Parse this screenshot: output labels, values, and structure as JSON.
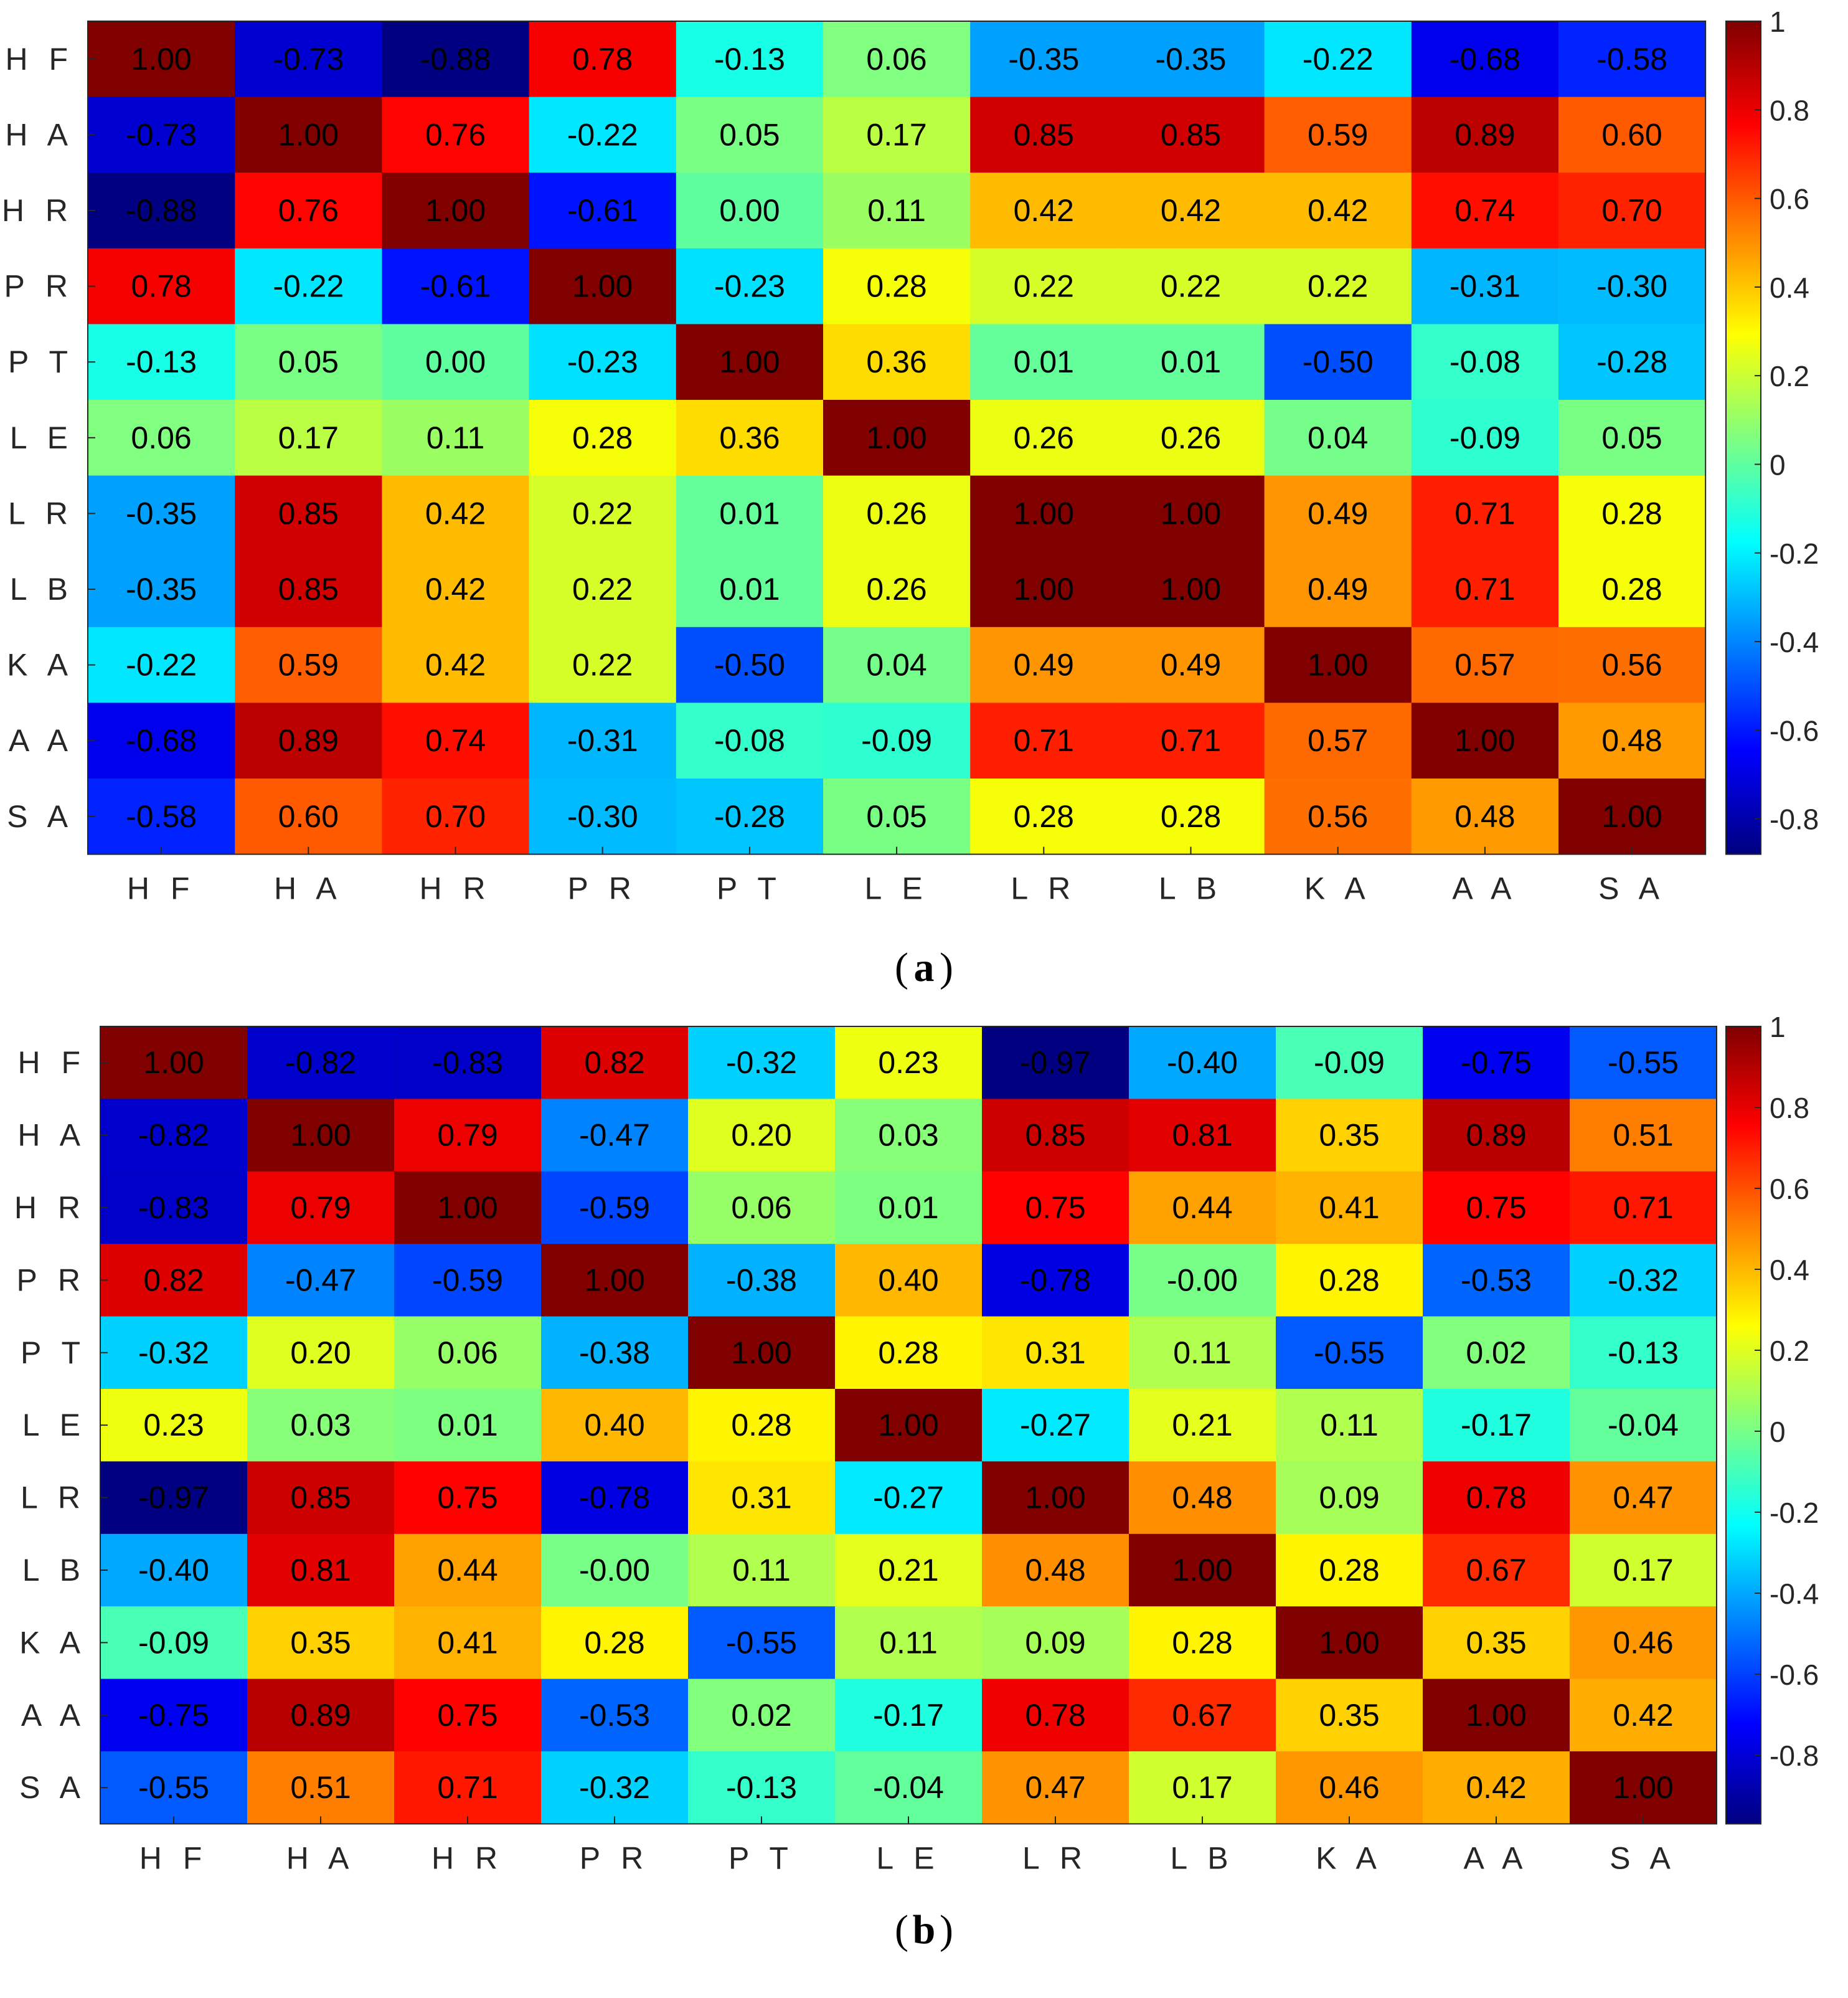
{
  "chart_data": [
    {
      "type": "heatmap",
      "panel_label": "a",
      "x_categories": [
        "HF",
        "HA",
        "HR",
        "PR",
        "PT",
        "LE",
        "LR",
        "LB",
        "KA",
        "AA",
        "SA"
      ],
      "y_categories": [
        "HF",
        "HA",
        "HR",
        "PR",
        "PT",
        "LE",
        "LR",
        "LB",
        "KA",
        "AA",
        "SA"
      ],
      "values": [
        [
          1.0,
          -0.73,
          -0.88,
          0.78,
          -0.13,
          0.06,
          -0.35,
          -0.35,
          -0.22,
          -0.68,
          -0.58
        ],
        [
          -0.73,
          1.0,
          0.76,
          -0.22,
          0.05,
          0.17,
          0.85,
          0.85,
          0.59,
          0.89,
          0.6
        ],
        [
          -0.88,
          0.76,
          1.0,
          -0.61,
          0.0,
          0.11,
          0.42,
          0.42,
          0.42,
          0.74,
          0.7
        ],
        [
          0.78,
          -0.22,
          -0.61,
          1.0,
          -0.23,
          0.28,
          0.22,
          0.22,
          0.22,
          -0.31,
          -0.3
        ],
        [
          -0.13,
          0.05,
          0.0,
          -0.23,
          1.0,
          0.36,
          0.01,
          0.01,
          -0.5,
          -0.08,
          -0.28
        ],
        [
          0.06,
          0.17,
          0.11,
          0.28,
          0.36,
          1.0,
          0.26,
          0.26,
          0.04,
          -0.09,
          0.05
        ],
        [
          -0.35,
          0.85,
          0.42,
          0.22,
          0.01,
          0.26,
          1.0,
          1.0,
          0.49,
          0.71,
          0.28
        ],
        [
          -0.35,
          0.85,
          0.42,
          0.22,
          0.01,
          0.26,
          1.0,
          1.0,
          0.49,
          0.71,
          0.28
        ],
        [
          -0.22,
          0.59,
          0.42,
          0.22,
          -0.5,
          0.04,
          0.49,
          0.49,
          1.0,
          0.57,
          0.56
        ],
        [
          -0.68,
          0.89,
          0.74,
          -0.31,
          -0.08,
          -0.09,
          0.71,
          0.71,
          0.57,
          1.0,
          0.48
        ],
        [
          -0.58,
          0.6,
          0.7,
          -0.3,
          -0.28,
          0.05,
          0.28,
          0.28,
          0.56,
          0.48,
          1.0
        ]
      ],
      "value_labels": [
        [
          "1.00",
          "-0.73",
          "-0.88",
          "0.78",
          "-0.13",
          "0.06",
          "-0.35",
          "-0.35",
          "-0.22",
          "-0.68",
          "-0.58"
        ],
        [
          "-0.73",
          "1.00",
          "0.76",
          "-0.22",
          "0.05",
          "0.17",
          "0.85",
          "0.85",
          "0.59",
          "0.89",
          "0.60"
        ],
        [
          "-0.88",
          "0.76",
          "1.00",
          "-0.61",
          "0.00",
          "0.11",
          "0.42",
          "0.42",
          "0.42",
          "0.74",
          "0.70"
        ],
        [
          "0.78",
          "-0.22",
          "-0.61",
          "1.00",
          "-0.23",
          "0.28",
          "0.22",
          "0.22",
          "0.22",
          "-0.31",
          "-0.30"
        ],
        [
          "-0.13",
          "0.05",
          "0.00",
          "-0.23",
          "1.00",
          "0.36",
          "0.01",
          "0.01",
          "-0.50",
          "-0.08",
          "-0.28"
        ],
        [
          "0.06",
          "0.17",
          "0.11",
          "0.28",
          "0.36",
          "1.00",
          "0.26",
          "0.26",
          "0.04",
          "-0.09",
          "0.05"
        ],
        [
          "-0.35",
          "0.85",
          "0.42",
          "0.22",
          "0.01",
          "0.26",
          "1.00",
          "1.00",
          "0.49",
          "0.71",
          "0.28"
        ],
        [
          "-0.35",
          "0.85",
          "0.42",
          "0.22",
          "0.01",
          "0.26",
          "1.00",
          "1.00",
          "0.49",
          "0.71",
          "0.28"
        ],
        [
          "-0.22",
          "0.59",
          "0.42",
          "0.22",
          "-0.50",
          "0.04",
          "0.49",
          "0.49",
          "1.00",
          "0.57",
          "0.56"
        ],
        [
          "-0.68",
          "0.89",
          "0.74",
          "-0.31",
          "-0.08",
          "-0.09",
          "0.71",
          "0.71",
          "0.57",
          "1.00",
          "0.48"
        ],
        [
          "-0.58",
          "0.60",
          "0.70",
          "-0.30",
          "-0.28",
          "0.05",
          "0.28",
          "0.28",
          "0.56",
          "0.48",
          "1.00"
        ]
      ],
      "colormap": "jet",
      "color_limits": [
        -0.88,
        1.0
      ],
      "colorbar_ticks": [
        1,
        0.8,
        0.6,
        0.4,
        0.2,
        0,
        -0.2,
        -0.4,
        -0.6,
        -0.8
      ],
      "colorbar_tick_labels": [
        "1",
        "0.8",
        "0.6",
        "0.4",
        "0.2",
        "0",
        "-0.2",
        "-0.4",
        "-0.6",
        "-0.8"
      ],
      "colorbar_placement": "right",
      "grid": false
    },
    {
      "type": "heatmap",
      "panel_label": "b",
      "x_categories": [
        "HF",
        "HA",
        "HR",
        "PR",
        "PT",
        "LE",
        "LR",
        "LB",
        "KA",
        "AA",
        "SA"
      ],
      "y_categories": [
        "HF",
        "HA",
        "HR",
        "PR",
        "PT",
        "LE",
        "LR",
        "LB",
        "KA",
        "AA",
        "SA"
      ],
      "values": [
        [
          1.0,
          -0.82,
          -0.83,
          0.82,
          -0.32,
          0.23,
          -0.97,
          -0.4,
          -0.09,
          -0.75,
          -0.55
        ],
        [
          -0.82,
          1.0,
          0.79,
          -0.47,
          0.2,
          0.03,
          0.85,
          0.81,
          0.35,
          0.89,
          0.51
        ],
        [
          -0.83,
          0.79,
          1.0,
          -0.59,
          0.06,
          0.01,
          0.75,
          0.44,
          0.41,
          0.75,
          0.71
        ],
        [
          0.82,
          -0.47,
          -0.59,
          1.0,
          -0.38,
          0.4,
          -0.78,
          -0.0,
          0.28,
          -0.53,
          -0.32
        ],
        [
          -0.32,
          0.2,
          0.06,
          -0.38,
          1.0,
          0.28,
          0.31,
          0.11,
          -0.55,
          0.02,
          -0.13
        ],
        [
          0.23,
          0.03,
          0.01,
          0.4,
          0.28,
          1.0,
          -0.27,
          0.21,
          0.11,
          -0.17,
          -0.04
        ],
        [
          -0.97,
          0.85,
          0.75,
          -0.78,
          0.31,
          -0.27,
          1.0,
          0.48,
          0.09,
          0.78,
          0.47
        ],
        [
          -0.4,
          0.81,
          0.44,
          -0.0,
          0.11,
          0.21,
          0.48,
          1.0,
          0.28,
          0.67,
          0.17
        ],
        [
          -0.09,
          0.35,
          0.41,
          0.28,
          -0.55,
          0.11,
          0.09,
          0.28,
          1.0,
          0.35,
          0.46
        ],
        [
          -0.75,
          0.89,
          0.75,
          -0.53,
          0.02,
          -0.17,
          0.78,
          0.67,
          0.35,
          1.0,
          0.42
        ],
        [
          -0.55,
          0.51,
          0.71,
          -0.32,
          -0.13,
          -0.04,
          0.47,
          0.17,
          0.46,
          0.42,
          1.0
        ]
      ],
      "value_labels": [
        [
          "1.00",
          "-0.82",
          "-0.83",
          "0.82",
          "-0.32",
          "0.23",
          "-0.97",
          "-0.40",
          "-0.09",
          "-0.75",
          "-0.55"
        ],
        [
          "-0.82",
          "1.00",
          "0.79",
          "-0.47",
          "0.20",
          "0.03",
          "0.85",
          "0.81",
          "0.35",
          "0.89",
          "0.51"
        ],
        [
          "-0.83",
          "0.79",
          "1.00",
          "-0.59",
          "0.06",
          "0.01",
          "0.75",
          "0.44",
          "0.41",
          "0.75",
          "0.71"
        ],
        [
          "0.82",
          "-0.47",
          "-0.59",
          "1.00",
          "-0.38",
          "0.40",
          "-0.78",
          "-0.00",
          "0.28",
          "-0.53",
          "-0.32"
        ],
        [
          "-0.32",
          "0.20",
          "0.06",
          "-0.38",
          "1.00",
          "0.28",
          "0.31",
          "0.11",
          "-0.55",
          "0.02",
          "-0.13"
        ],
        [
          "0.23",
          "0.03",
          "0.01",
          "0.40",
          "0.28",
          "1.00",
          "-0.27",
          "0.21",
          "0.11",
          "-0.17",
          "-0.04"
        ],
        [
          "-0.97",
          "0.85",
          "0.75",
          "-0.78",
          "0.31",
          "-0.27",
          "1.00",
          "0.48",
          "0.09",
          "0.78",
          "0.47"
        ],
        [
          "-0.40",
          "0.81",
          "0.44",
          "-0.00",
          "0.11",
          "0.21",
          "0.48",
          "1.00",
          "0.28",
          "0.67",
          "0.17"
        ],
        [
          "-0.09",
          "0.35",
          "0.41",
          "0.28",
          "-0.55",
          "0.11",
          "0.09",
          "0.28",
          "1.00",
          "0.35",
          "0.46"
        ],
        [
          "-0.75",
          "0.89",
          "0.75",
          "-0.53",
          "0.02",
          "-0.17",
          "0.78",
          "0.67",
          "0.35",
          "1.00",
          "0.42"
        ],
        [
          "-0.55",
          "0.51",
          "0.71",
          "-0.32",
          "-0.13",
          "-0.04",
          "0.47",
          "0.17",
          "0.46",
          "0.42",
          "1.00"
        ]
      ],
      "colormap": "jet",
      "color_limits": [
        -0.97,
        1.0
      ],
      "colorbar_ticks": [
        1,
        0.8,
        0.6,
        0.4,
        0.2,
        0,
        -0.2,
        -0.4,
        -0.6,
        -0.8
      ],
      "colorbar_tick_labels": [
        "1",
        "0.8",
        "0.6",
        "0.4",
        "0.2",
        "0",
        "-0.2",
        "-0.4",
        "-0.6",
        "-0.8"
      ],
      "colorbar_placement": "right",
      "grid": false
    }
  ]
}
